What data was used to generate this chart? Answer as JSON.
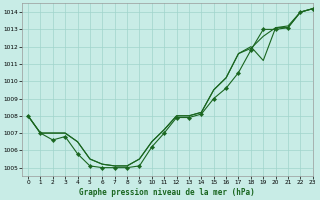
{
  "title": "Graphe pression niveau de la mer (hPa)",
  "background_color": "#c8ece6",
  "grid_color": "#a0d4cc",
  "line_color": "#1a6620",
  "xlim": [
    -0.5,
    23
  ],
  "ylim": [
    1004.5,
    1014.5
  ],
  "yticks": [
    1005,
    1006,
    1007,
    1008,
    1009,
    1010,
    1011,
    1012,
    1013,
    1014
  ],
  "xticks": [
    0,
    1,
    2,
    3,
    4,
    5,
    6,
    7,
    8,
    9,
    10,
    11,
    12,
    13,
    14,
    15,
    16,
    17,
    18,
    19,
    20,
    21,
    22,
    23
  ],
  "series_no_marker": [
    [
      1008,
      1007,
      1007,
      1007,
      1006.5,
      1005.5,
      1005.2,
      1005.1,
      1005.1,
      1005.5,
      1006.5,
      1007.2,
      1008.0,
      1008.0,
      1008.2,
      1009.5,
      1010.2,
      1011.6,
      1012.0,
      1011.2,
      1013.1,
      1013.1,
      1014.0,
      1014.2
    ],
    [
      1008,
      1007,
      1007,
      1007,
      1006.5,
      1005.5,
      1005.2,
      1005.1,
      1005.1,
      1005.5,
      1006.5,
      1007.2,
      1008.0,
      1008.0,
      1008.2,
      1009.5,
      1010.2,
      1011.6,
      1011.9,
      1012.6,
      1013.1,
      1013.2,
      1014.0,
      1014.2
    ]
  ],
  "series_with_marker": [
    [
      1008,
      1007,
      1006.6,
      1006.8,
      1005.8,
      1005.1,
      1005.0,
      1005.0,
      1005.0,
      1005.1,
      1006.2,
      1007.0,
      1007.9,
      1007.9,
      1008.1,
      1009.0,
      1009.6,
      1010.5,
      1011.8,
      1013.0,
      1013.0,
      1013.1,
      1014.0,
      1014.2
    ]
  ],
  "figsize": [
    3.2,
    2.0
  ],
  "dpi": 100
}
